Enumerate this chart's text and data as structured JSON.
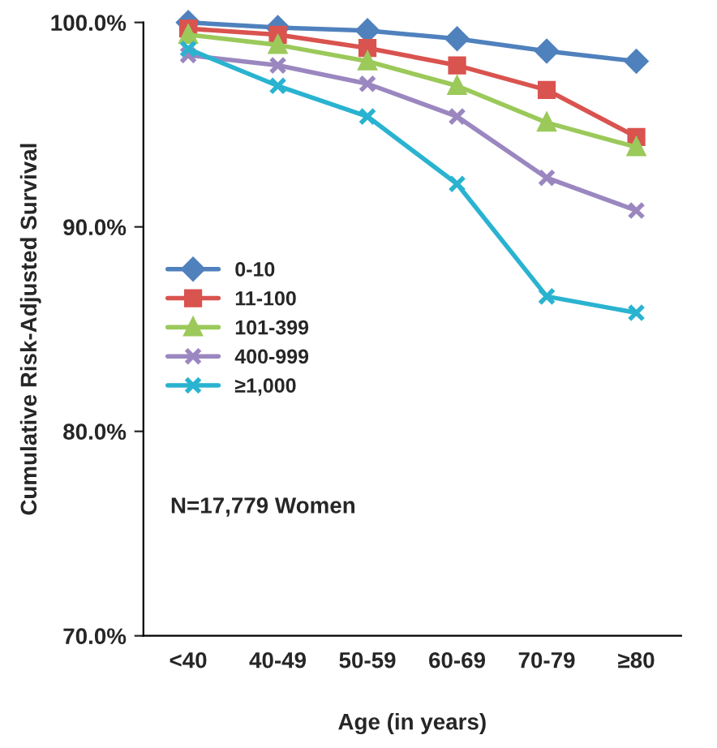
{
  "chart_data": {
    "type": "line",
    "xlabel": "Age (in years)",
    "ylabel": "Cumulative Risk-Adjusted Survival",
    "categories": [
      "<40",
      "40-49",
      "50-59",
      "60-69",
      "70-79",
      "≥80"
    ],
    "series": [
      {
        "name": "0-10",
        "color": "#4f81bd",
        "marker": "diamond",
        "values": [
          100.0,
          99.75,
          99.6,
          99.2,
          98.6,
          98.1
        ]
      },
      {
        "name": "11-100",
        "color": "#d9534f",
        "marker": "square",
        "values": [
          99.7,
          99.4,
          98.75,
          97.9,
          96.7,
          94.4
        ]
      },
      {
        "name": "101-399",
        "color": "#9bc95a",
        "marker": "triangle",
        "values": [
          99.4,
          98.9,
          98.1,
          96.9,
          95.1,
          93.9
        ]
      },
      {
        "name": "400-999",
        "color": "#9b87c0",
        "marker": "cross",
        "values": [
          98.4,
          97.9,
          97.0,
          95.4,
          92.4,
          90.8
        ]
      },
      {
        "name": "≥1,000",
        "color": "#2ab3d0",
        "marker": "cross",
        "values": [
          98.7,
          96.9,
          95.4,
          92.1,
          86.6,
          85.8
        ]
      }
    ],
    "ylim": [
      70,
      100
    ],
    "yticks": [
      {
        "value": 70,
        "label": "70.0%"
      },
      {
        "value": 80,
        "label": "80.0%"
      },
      {
        "value": 90,
        "label": "90.0%"
      },
      {
        "value": 100,
        "label": "100.0%"
      }
    ],
    "annotations": [
      "N=17,779 Women"
    ],
    "legend": "left",
    "grid": false,
    "line_style": "solid"
  }
}
